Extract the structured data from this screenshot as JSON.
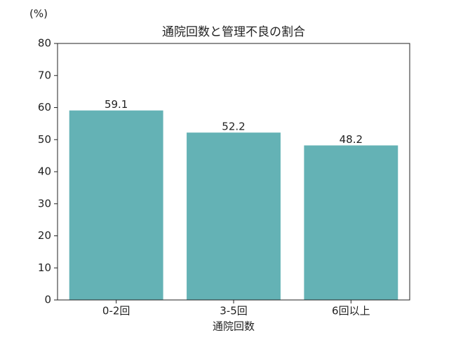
{
  "chart_data": {
    "type": "bar",
    "title": "通院回数と管理不良の割合",
    "ylabel": "(%)",
    "xlabel": "通院回数",
    "categories": [
      "0-2回",
      "3-5回",
      "6回以上"
    ],
    "values": [
      59.1,
      52.2,
      48.2
    ],
    "color": "#64b2b5",
    "ylim": [
      0,
      80
    ],
    "yticks": [
      0,
      10,
      20,
      30,
      40,
      50,
      60,
      70,
      80
    ],
    "grid": false
  }
}
